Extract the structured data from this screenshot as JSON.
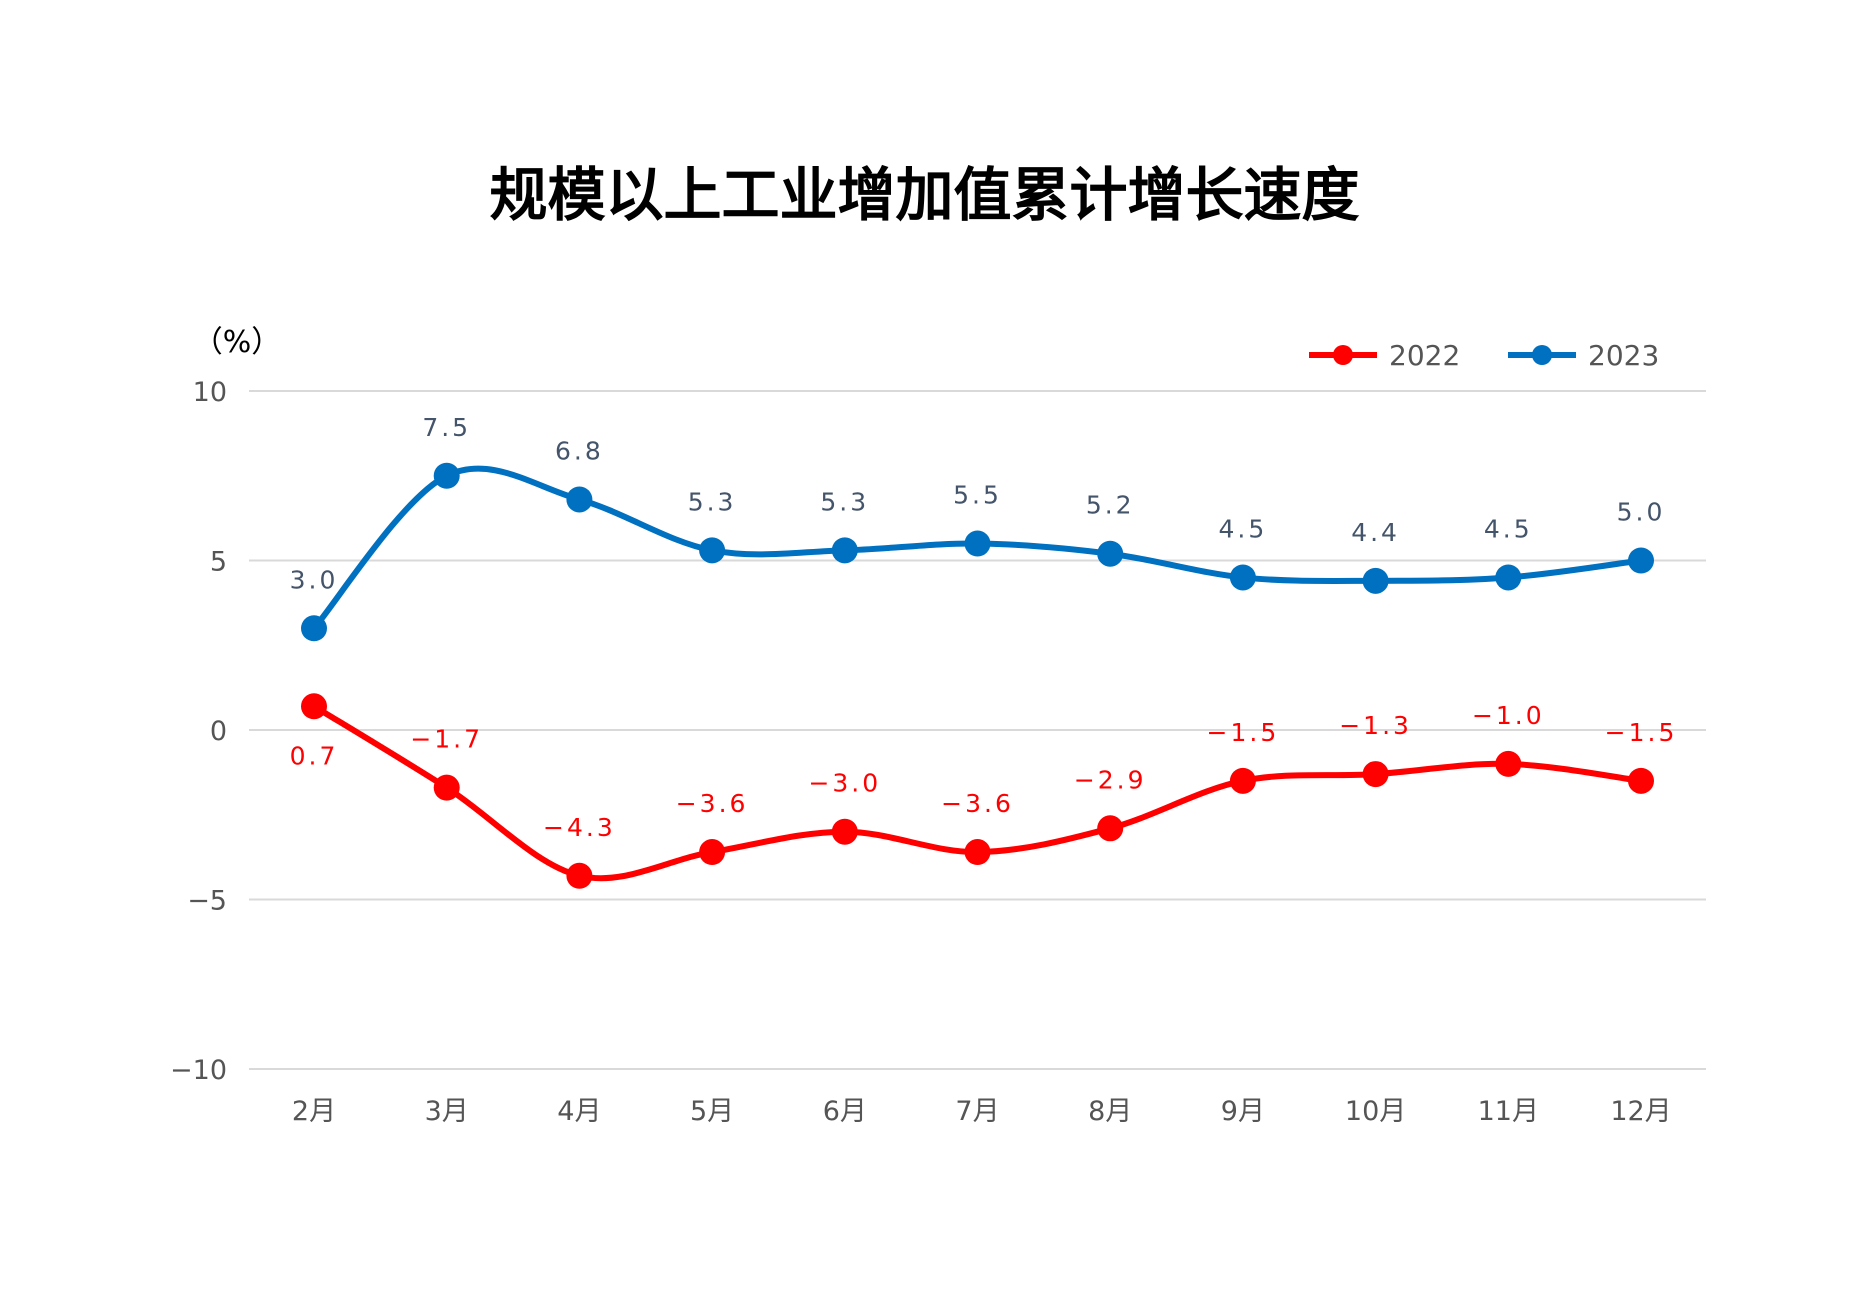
{
  "chart_data": {
    "type": "line",
    "title": "规模以上工业增加值累计增长速度",
    "ylabel": "（%）",
    "xlabel": "",
    "categories": [
      "2月",
      "3月",
      "4月",
      "5月",
      "6月",
      "7月",
      "8月",
      "9月",
      "10月",
      "11月",
      "12月"
    ],
    "ylim": [
      -10,
      10
    ],
    "yticks": [
      10,
      5,
      0,
      -5,
      -10
    ],
    "grid": true,
    "legend": "top-right",
    "smooth": true,
    "series": [
      {
        "name": "2022",
        "color": "#ff0000",
        "labelColor": "#ff0000",
        "values": [
          0.7,
          -1.7,
          -4.3,
          -3.6,
          -3.0,
          -3.6,
          -2.9,
          -1.5,
          -1.3,
          -1.0,
          -1.5
        ]
      },
      {
        "name": "2023",
        "color": "#0070c0",
        "labelColor": "#44546a",
        "values": [
          3.0,
          7.5,
          6.8,
          5.3,
          5.3,
          5.5,
          5.2,
          4.5,
          4.4,
          4.5,
          5.0
        ]
      }
    ]
  }
}
